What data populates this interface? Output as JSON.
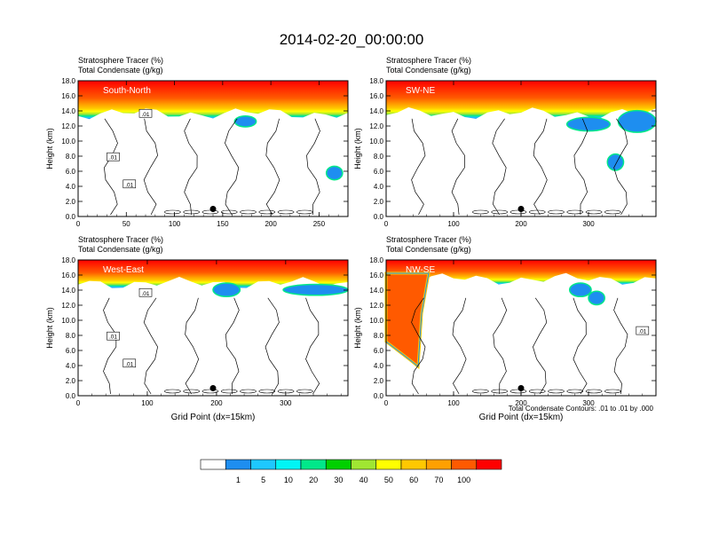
{
  "main_title": "2014-02-20_00:00:00",
  "line1": "Stratosphere Tracer   (%)",
  "line2": "Total Condensate   (g/kg)",
  "contour_note": "Total Condensate Contours: .01 to .01 by .000",
  "colorbar": {
    "colors": [
      "#ffffff",
      "#1e8ef0",
      "#1ec8ff",
      "#00f5f5",
      "#00e88a",
      "#00d000",
      "#a0e632",
      "#ffff00",
      "#ffc800",
      "#ffa000",
      "#ff5a00",
      "#ff0000"
    ],
    "labels": [
      "1",
      "5",
      "10",
      "20",
      "30",
      "40",
      "50",
      "60",
      "70",
      "100"
    ]
  },
  "chart_data": [
    {
      "type": "heatmap",
      "panel": "South-North",
      "title": "Stratosphere Tracer (%) / Total Condensate (g/kg)",
      "ylabel": "Height (km)",
      "xlabel": "",
      "xlim": [
        0,
        280
      ],
      "ylim": [
        0,
        18
      ],
      "xticks": [
        0,
        50,
        100,
        150,
        200,
        250
      ],
      "yticks": [
        "0.0",
        "2.0",
        "4.0",
        "6.0",
        "8.0",
        "10.0",
        "12.0",
        "14.0",
        "16.0",
        "18.0"
      ],
      "contour_labels": [
        ".01",
        ".01",
        ".01"
      ],
      "marker": {
        "x": 140,
        "y": 1.0
      }
    },
    {
      "type": "heatmap",
      "panel": "SW-NE",
      "title": "Stratosphere Tracer (%) / Total Condensate (g/kg)",
      "ylabel": "Height (km)",
      "xlabel": "",
      "xlim": [
        0,
        400
      ],
      "ylim": [
        0,
        18
      ],
      "xticks": [
        0,
        100,
        200,
        300
      ],
      "yticks": [
        "0.0",
        "2.0",
        "4.0",
        "6.0",
        "8.0",
        "10.0",
        "12.0",
        "14.0",
        "16.0",
        "18.0"
      ],
      "contour_labels": [],
      "marker": {
        "x": 200,
        "y": 1.0
      }
    },
    {
      "type": "heatmap",
      "panel": "West-East",
      "title": "Stratosphere Tracer (%) / Total Condensate (g/kg)",
      "ylabel": "Height (km)",
      "xlabel": "Grid Point (dx=15km)",
      "xlim": [
        0,
        390
      ],
      "ylim": [
        0,
        18
      ],
      "xticks": [
        0,
        100,
        200,
        300
      ],
      "yticks": [
        "0.0",
        "2.0",
        "4.0",
        "6.0",
        "8.0",
        "10.0",
        "12.0",
        "14.0",
        "16.0",
        "18.0"
      ],
      "contour_labels": [
        ".01",
        ".01",
        ".01"
      ],
      "marker": {
        "x": 195,
        "y": 1.0
      }
    },
    {
      "type": "heatmap",
      "panel": "NW-SE",
      "title": "Stratosphere Tracer (%) / Total Condensate (g/kg)",
      "ylabel": "Height (km)",
      "xlabel": "Grid Point (dx=15km)",
      "xlim": [
        0,
        400
      ],
      "ylim": [
        0,
        18
      ],
      "xticks": [
        0,
        100,
        200,
        300
      ],
      "yticks": [
        "0.0",
        "2.0",
        "4.0",
        "6.0",
        "8.0",
        "10.0",
        "12.0",
        "14.0",
        "16.0",
        "18.0"
      ],
      "contour_labels": [
        ".01"
      ],
      "marker": {
        "x": 200,
        "y": 1.0
      }
    }
  ]
}
